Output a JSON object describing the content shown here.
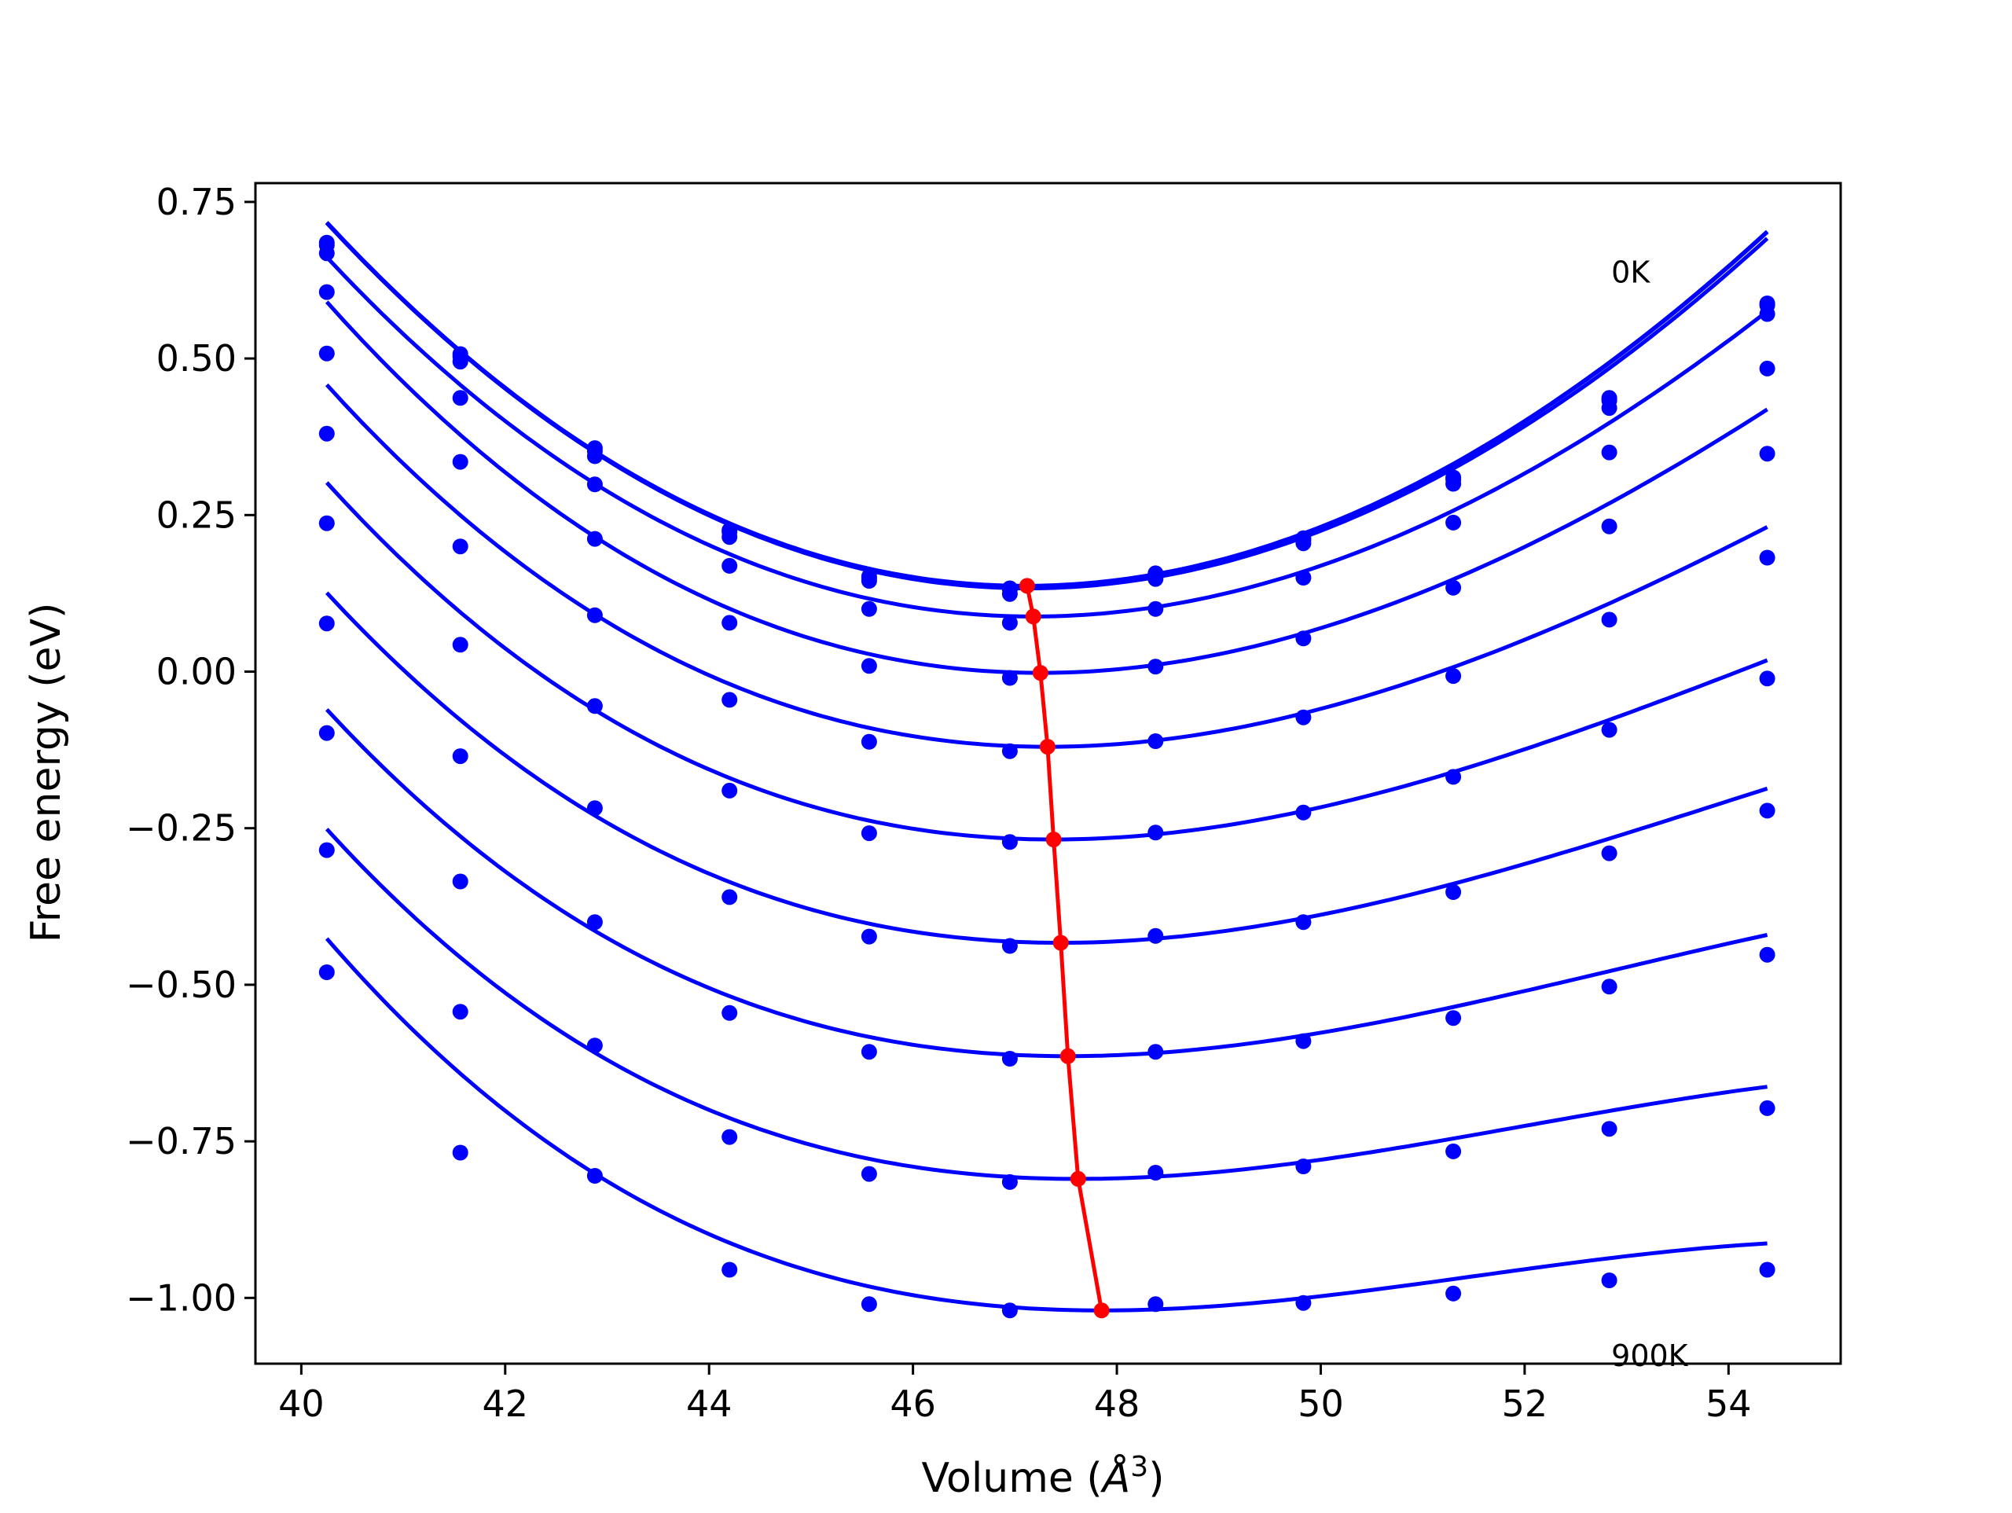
{
  "chart_data": {
    "type": "line",
    "title": "",
    "xlabel": "Volume (Å³)",
    "xlabel_main": "Volume (",
    "xlabel_unit": "Å",
    "xlabel_exp": "3",
    "xlabel_close": ")",
    "ylabel": "Free energy (eV)",
    "xlim": [
      39.55,
      55.1
    ],
    "ylim": [
      -1.105,
      0.78
    ],
    "x_ticks": [
      40,
      42,
      44,
      46,
      48,
      50,
      52,
      54
    ],
    "x_tick_labels": [
      "40",
      "42",
      "44",
      "46",
      "48",
      "50",
      "52",
      "54"
    ],
    "y_ticks": [
      0.75,
      0.5,
      0.25,
      0.0,
      -0.25,
      -0.5,
      -0.75,
      -1.0
    ],
    "y_tick_labels": [
      "0.75",
      "0.50",
      "0.25",
      "0.00",
      "−0.25",
      "−0.50",
      "−0.75",
      "−1.00"
    ],
    "grid": false,
    "legend": "none",
    "annotations": [
      {
        "text": "0K",
        "x": 52.85,
        "y": 0.64
      },
      {
        "text": "900K",
        "x": 52.85,
        "y": -1.09
      }
    ],
    "colors": {
      "curves": "#0000ff",
      "minimum_line": "#ff0000",
      "axes": "#000000"
    },
    "volumes": [
      40.25,
      41.56,
      42.88,
      44.2,
      45.57,
      46.95,
      48.38,
      49.83,
      51.3,
      52.83,
      54.38
    ],
    "series": [
      {
        "values": [
          0.685,
          0.507,
          0.357,
          0.226,
          0.152,
          0.133,
          0.157,
          0.213,
          0.31,
          0.437,
          0.588
        ],
        "fit": {
          "V0": 47.1,
          "E0": 0.137,
          "a": 0.01155,
          "b": -0.00012
        }
      },
      {
        "values": [
          0.681,
          0.503,
          0.352,
          0.223,
          0.149,
          0.131,
          0.152,
          0.21,
          0.307,
          0.433,
          0.585
        ],
        "fit": {
          "V0": 47.1,
          "E0": 0.136,
          "a": 0.01155,
          "b": -0.00012
        }
      },
      {
        "values": [
          0.668,
          0.495,
          0.344,
          0.215,
          0.145,
          0.124,
          0.148,
          0.205,
          0.3,
          0.421,
          0.571
        ],
        "fit": {
          "V0": 47.13,
          "E0": 0.133,
          "a": 0.0115,
          "b": -0.00012
        }
      },
      {
        "values": [
          0.606,
          0.437,
          0.299,
          0.169,
          0.1,
          0.078,
          0.1,
          0.15,
          0.238,
          0.35,
          0.484
        ],
        "fit": {
          "V0": 47.18,
          "E0": 0.088,
          "a": 0.0107,
          "b": -0.00018
        }
      },
      {
        "values": [
          0.508,
          0.335,
          0.212,
          0.078,
          0.009,
          -0.01,
          0.008,
          0.053,
          0.134,
          0.232,
          0.348
        ],
        "fit": {
          "V0": 47.25,
          "E0": -0.002,
          "a": 0.0102,
          "b": -0.00027
        }
      },
      {
        "values": [
          0.38,
          0.2,
          0.09,
          -0.045,
          -0.112,
          -0.127,
          -0.111,
          -0.073,
          -0.007,
          0.083,
          0.182
        ],
        "fit": {
          "V0": 47.32,
          "E0": -0.12,
          "a": 0.0093,
          "b": -0.00032
        }
      },
      {
        "values": [
          0.237,
          0.043,
          -0.055,
          -0.19,
          -0.258,
          -0.272,
          -0.257,
          -0.225,
          -0.168,
          -0.093,
          -0.011
        ],
        "fit": {
          "V0": 47.38,
          "E0": -0.268,
          "a": 0.0085,
          "b": -0.00038
        }
      },
      {
        "values": [
          0.077,
          -0.135,
          -0.218,
          -0.36,
          -0.423,
          -0.438,
          -0.422,
          -0.4,
          -0.352,
          -0.29,
          -0.222
        ],
        "fit": {
          "V0": 47.45,
          "E0": -0.433,
          "a": 0.0079,
          "b": -0.0004
        }
      },
      {
        "values": [
          -0.098,
          -0.335,
          -0.4,
          -0.545,
          -0.607,
          -0.618,
          -0.607,
          -0.59,
          -0.553,
          -0.503,
          -0.452
        ],
        "fit": {
          "V0": 47.52,
          "E0": -0.614,
          "a": 0.0072,
          "b": -0.00045
        }
      },
      {
        "values": [
          -0.285,
          -0.543,
          -0.597,
          -0.743,
          -0.802,
          -0.815,
          -0.8,
          -0.79,
          -0.766,
          -0.73,
          -0.697
        ],
        "fit": {
          "V0": 47.62,
          "E0": -0.81,
          "a": 0.0066,
          "b": -0.0005
        }
      },
      {
        "values": [
          -0.48,
          -0.768,
          -0.805,
          -0.955,
          -1.01,
          -1.02,
          -1.01,
          -1.008,
          -0.993,
          -0.972,
          -0.955
        ],
        "fit": {
          "V0": 47.85,
          "E0": -1.02,
          "a": 0.0061,
          "b": -0.00055
        }
      }
    ],
    "minimum_line": {
      "x": [
        47.12,
        47.18,
        47.25,
        47.32,
        47.38,
        47.45,
        47.52,
        47.62,
        47.85
      ],
      "y": [
        0.137,
        0.088,
        -0.002,
        -0.12,
        -0.268,
        -0.433,
        -0.614,
        -0.81,
        -1.02
      ]
    }
  }
}
